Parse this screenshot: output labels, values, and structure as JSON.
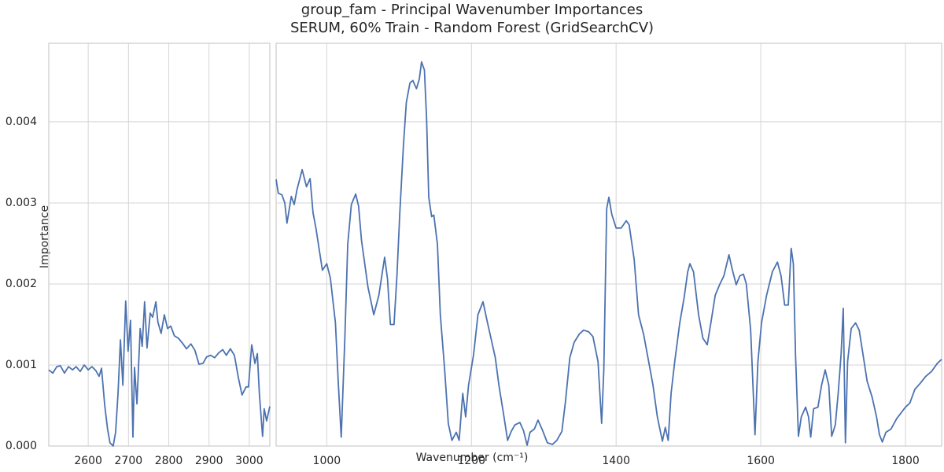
{
  "chart_data": [
    {
      "type": "line",
      "title": "group_fam - Principal Wavenumber Importances",
      "subtitle": "SERUM, 60% Train - Random Forest (GridSearchCV)",
      "x_label": "Wavenumber (cm⁻¹)",
      "y_label": "Importance",
      "color": "#4c72b0",
      "grid": true,
      "xlim": [
        2502,
        3051
      ],
      "xticks": [
        2600,
        2700,
        2800,
        2900,
        3000
      ],
      "ylim": [
        0,
        0.00497
      ],
      "yticks": [
        {
          "value": 0,
          "label": "0.000"
        },
        {
          "value": 0.001,
          "label": "0.001"
        },
        {
          "value": 0.002,
          "label": "0.002"
        },
        {
          "value": 0.003,
          "label": "0.003"
        },
        {
          "value": 0.004,
          "label": "0.004"
        }
      ],
      "x": [
        2502,
        2512,
        2522,
        2531,
        2541,
        2551,
        2561,
        2570,
        2580,
        2590,
        2600,
        2609,
        2619,
        2627,
        2633,
        2641,
        2648,
        2654,
        2662,
        2668,
        2674,
        2680,
        2686,
        2693,
        2699,
        2705,
        2711,
        2715,
        2721,
        2729,
        2734,
        2740,
        2746,
        2754,
        2760,
        2768,
        2773,
        2781,
        2789,
        2797,
        2805,
        2814,
        2824,
        2834,
        2844,
        2855,
        2865,
        2875,
        2885,
        2894,
        2904,
        2914,
        2924,
        2934,
        2943,
        2953,
        2963,
        2973,
        2982,
        2992,
        2998,
        3006,
        3014,
        3020,
        3025,
        3033,
        3037,
        3043,
        3051
      ],
      "values": [
        0.00094,
        0.0009,
        0.00098,
        0.00099,
        0.0009,
        0.00098,
        0.00094,
        0.00098,
        0.00092,
        0.001,
        0.00094,
        0.00098,
        0.00093,
        0.00086,
        0.00096,
        0.0005,
        0.00021,
        4e-05,
        0,
        0.00017,
        0.00065,
        0.00131,
        0.00075,
        0.00179,
        0.00117,
        0.00155,
        0.00011,
        0.00097,
        0.00052,
        0.00145,
        0.00123,
        0.00178,
        0.00121,
        0.00164,
        0.00159,
        0.00178,
        0.00153,
        0.00139,
        0.00162,
        0.00145,
        0.00148,
        0.00136,
        0.00133,
        0.00127,
        0.0012,
        0.00126,
        0.00118,
        0.00101,
        0.00102,
        0.0011,
        0.00112,
        0.00109,
        0.00115,
        0.00119,
        0.00112,
        0.0012,
        0.00112,
        0.00084,
        0.00063,
        0.00073,
        0.00073,
        0.00125,
        0.00102,
        0.00114,
        0.00065,
        0.00012,
        0.00046,
        0.00031,
        0.00049
      ]
    },
    {
      "type": "line",
      "color": "#4c72b0",
      "grid": true,
      "xlim": [
        930,
        1850
      ],
      "xticks": [
        1000,
        1200,
        1400,
        1600,
        1800
      ],
      "ylim": [
        0,
        0.00497
      ],
      "yticks": [
        0,
        0.001,
        0.002,
        0.003,
        0.004
      ],
      "x": [
        930,
        933,
        938,
        942,
        945,
        951,
        955,
        959,
        966,
        972,
        977,
        981,
        985,
        994,
        1000,
        1005,
        1012,
        1016,
        1020,
        1025,
        1029,
        1034,
        1040,
        1044,
        1048,
        1057,
        1065,
        1072,
        1080,
        1084,
        1088,
        1093,
        1097,
        1101,
        1106,
        1110,
        1115,
        1119,
        1124,
        1128,
        1131,
        1135,
        1138,
        1141,
        1145,
        1148,
        1153,
        1157,
        1163,
        1168,
        1173,
        1179,
        1183,
        1188,
        1192,
        1196,
        1203,
        1209,
        1216,
        1222,
        1227,
        1233,
        1238,
        1245,
        1250,
        1255,
        1260,
        1267,
        1272,
        1277,
        1281,
        1287,
        1292,
        1298,
        1305,
        1312,
        1318,
        1325,
        1330,
        1336,
        1342,
        1349,
        1355,
        1362,
        1368,
        1375,
        1380,
        1383,
        1387,
        1390,
        1394,
        1400,
        1407,
        1414,
        1418,
        1425,
        1431,
        1438,
        1444,
        1451,
        1457,
        1464,
        1468,
        1472,
        1476,
        1481,
        1488,
        1494,
        1499,
        1502,
        1507,
        1514,
        1520,
        1526,
        1531,
        1537,
        1543,
        1549,
        1556,
        1560,
        1566,
        1571,
        1576,
        1580,
        1586,
        1592,
        1596,
        1601,
        1608,
        1616,
        1623,
        1628,
        1633,
        1638,
        1642,
        1645,
        1648,
        1652,
        1656,
        1662,
        1666,
        1669,
        1673,
        1679,
        1684,
        1689,
        1694,
        1698,
        1703,
        1707,
        1711,
        1714,
        1717,
        1720,
        1725,
        1731,
        1736,
        1742,
        1747,
        1754,
        1760,
        1764,
        1768,
        1773,
        1780,
        1788,
        1794,
        1800,
        1806,
        1813,
        1820,
        1828,
        1836,
        1844,
        1850
      ],
      "values": [
        0.00329,
        0.00312,
        0.0031,
        0.003,
        0.00275,
        0.00308,
        0.00298,
        0.00317,
        0.00341,
        0.0032,
        0.0033,
        0.00288,
        0.00269,
        0.00217,
        0.00225,
        0.00207,
        0.00152,
        0.00077,
        0.00011,
        0.00133,
        0.00249,
        0.00298,
        0.00311,
        0.00296,
        0.00254,
        0.00196,
        0.00162,
        0.00186,
        0.00233,
        0.00206,
        0.0015,
        0.0015,
        0.0021,
        0.00288,
        0.00371,
        0.00424,
        0.00448,
        0.00451,
        0.00441,
        0.00453,
        0.00474,
        0.00464,
        0.00404,
        0.00307,
        0.00283,
        0.00285,
        0.00249,
        0.00162,
        0.00094,
        0.00028,
        7e-05,
        0.00017,
        7e-05,
        0.00065,
        0.00036,
        0.00075,
        0.00113,
        0.00162,
        0.00178,
        0.00153,
        0.00133,
        0.00109,
        0.00075,
        0.00036,
        7e-05,
        0.00018,
        0.00026,
        0.00029,
        0.00019,
        1e-05,
        0.00017,
        0.00021,
        0.00032,
        0.0002,
        4e-05,
        2e-05,
        7e-05,
        0.00018,
        0.00055,
        0.00109,
        0.00128,
        0.00138,
        0.00143,
        0.00141,
        0.00135,
        0.00104,
        0.00028,
        0.00094,
        0.00293,
        0.00307,
        0.00286,
        0.00269,
        0.00269,
        0.00278,
        0.00273,
        0.0023,
        0.00162,
        0.00138,
        0.00109,
        0.00075,
        0.00036,
        6e-05,
        0.00023,
        7e-05,
        0.00065,
        0.00104,
        0.00152,
        0.00183,
        0.00215,
        0.00225,
        0.00215,
        0.00162,
        0.00133,
        0.00125,
        0.00152,
        0.00186,
        0.00199,
        0.0021,
        0.00236,
        0.0022,
        0.00199,
        0.0021,
        0.00212,
        0.002,
        0.00143,
        0.00014,
        0.00104,
        0.00152,
        0.00186,
        0.00215,
        0.00227,
        0.0021,
        0.00174,
        0.00174,
        0.00244,
        0.00225,
        0.00113,
        0.00012,
        0.00036,
        0.00048,
        0.00036,
        0.00011,
        0.00046,
        0.00048,
        0.00075,
        0.00094,
        0.00075,
        0.00012,
        0.00026,
        0.00065,
        0.00113,
        0.0017,
        4e-05,
        0.00104,
        0.00145,
        0.00152,
        0.00143,
        0.00109,
        0.0008,
        0.0006,
        0.00036,
        0.00014,
        5e-05,
        0.00017,
        0.00021,
        0.00034,
        0.00041,
        0.00048,
        0.00053,
        0.0007,
        0.00077,
        0.00086,
        0.00092,
        0.00102,
        0.00107
      ]
    }
  ]
}
